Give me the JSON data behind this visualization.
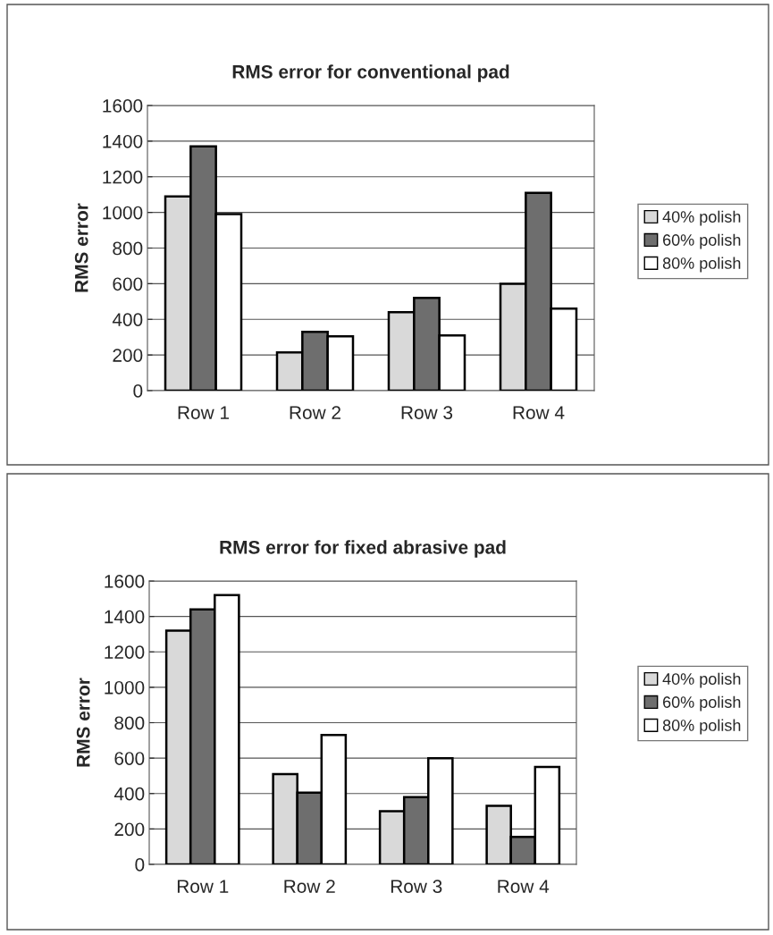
{
  "chart_data": [
    {
      "type": "bar",
      "title": "RMS error for conventional pad",
      "ylabel": "RMS error",
      "categories": [
        "Row 1",
        "Row 2",
        "Row 3",
        "Row 4"
      ],
      "series": [
        {
          "name": "40% polish",
          "color": "#d9d9d9",
          "values": [
            1090,
            215,
            440,
            600
          ]
        },
        {
          "name": "60% polish",
          "color": "#6e6e6e",
          "values": [
            1370,
            330,
            520,
            1110
          ]
        },
        {
          "name": "80% polish",
          "color": "#ffffff",
          "values": [
            990,
            305,
            310,
            460
          ]
        }
      ],
      "ylim": [
        0,
        1600
      ],
      "yticks": [
        0,
        200,
        400,
        600,
        800,
        1000,
        1200,
        1400,
        1600
      ],
      "grid": "y",
      "legend": "right"
    },
    {
      "type": "bar",
      "title": "RMS error for fixed abrasive pad",
      "ylabel": "RMS error",
      "categories": [
        "Row 1",
        "Row 2",
        "Row 3",
        "Row 4"
      ],
      "series": [
        {
          "name": "40% polish",
          "color": "#d9d9d9",
          "values": [
            1320,
            510,
            300,
            330
          ]
        },
        {
          "name": "60% polish",
          "color": "#6e6e6e",
          "values": [
            1440,
            405,
            380,
            155
          ]
        },
        {
          "name": "80% polish",
          "color": "#ffffff",
          "values": [
            1520,
            730,
            600,
            550
          ]
        }
      ],
      "ylim": [
        0,
        1600
      ],
      "yticks": [
        0,
        200,
        400,
        600,
        800,
        1000,
        1200,
        1400,
        1600
      ],
      "grid": "y",
      "legend": "right"
    }
  ]
}
